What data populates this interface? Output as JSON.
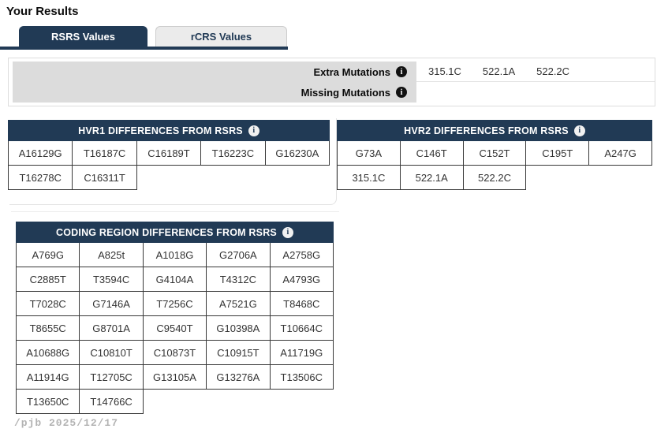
{
  "page": {
    "title": "Your Results",
    "watermark": "/pjb 2025/12/17"
  },
  "tabs": [
    {
      "label": "RSRS Values",
      "active": true
    },
    {
      "label": "rCRS Values",
      "active": false
    }
  ],
  "mutations_panel": {
    "rows": [
      {
        "label": "Extra Mutations",
        "values": [
          "315.1C",
          "522.1A",
          "522.2C"
        ]
      },
      {
        "label": "Missing Mutations",
        "values": []
      }
    ]
  },
  "tables": {
    "hvr1": {
      "title": "HVR1 DIFFERENCES FROM RSRS",
      "cols": 5,
      "values": [
        "A16129G",
        "T16187C",
        "C16189T",
        "T16223C",
        "G16230A",
        "T16278C",
        "C16311T"
      ]
    },
    "hvr2": {
      "title": "HVR2 DIFFERENCES FROM RSRS",
      "cols": 5,
      "values": [
        "G73A",
        "C146T",
        "C152T",
        "C195T",
        "A247G",
        "315.1C",
        "522.1A",
        "522.2C"
      ]
    },
    "coding": {
      "title": "CODING REGION DIFFERENCES FROM RSRS",
      "cols": 5,
      "values": [
        "A769G",
        "A825t",
        "A1018G",
        "G2706A",
        "A2758G",
        "C2885T",
        "T3594C",
        "G4104A",
        "T4312C",
        "A4793G",
        "T7028C",
        "G7146A",
        "T7256C",
        "A7521G",
        "T8468C",
        "T8655C",
        "G8701A",
        "C9540T",
        "G10398A",
        "T10664C",
        "A10688G",
        "C10810T",
        "C10873T",
        "C10915T",
        "A11719G",
        "A11914G",
        "T12705C",
        "G13105A",
        "G13276A",
        "T13506C",
        "T13650C",
        "T14766C"
      ]
    }
  },
  "icons": {
    "info": "i"
  },
  "colors": {
    "navy": "#213a55",
    "panel_gray": "#dcdcdc",
    "cell_border": "#383838",
    "tab_inactive_bg": "#ebebeb",
    "watermark_gray": "#b3b3b3"
  }
}
